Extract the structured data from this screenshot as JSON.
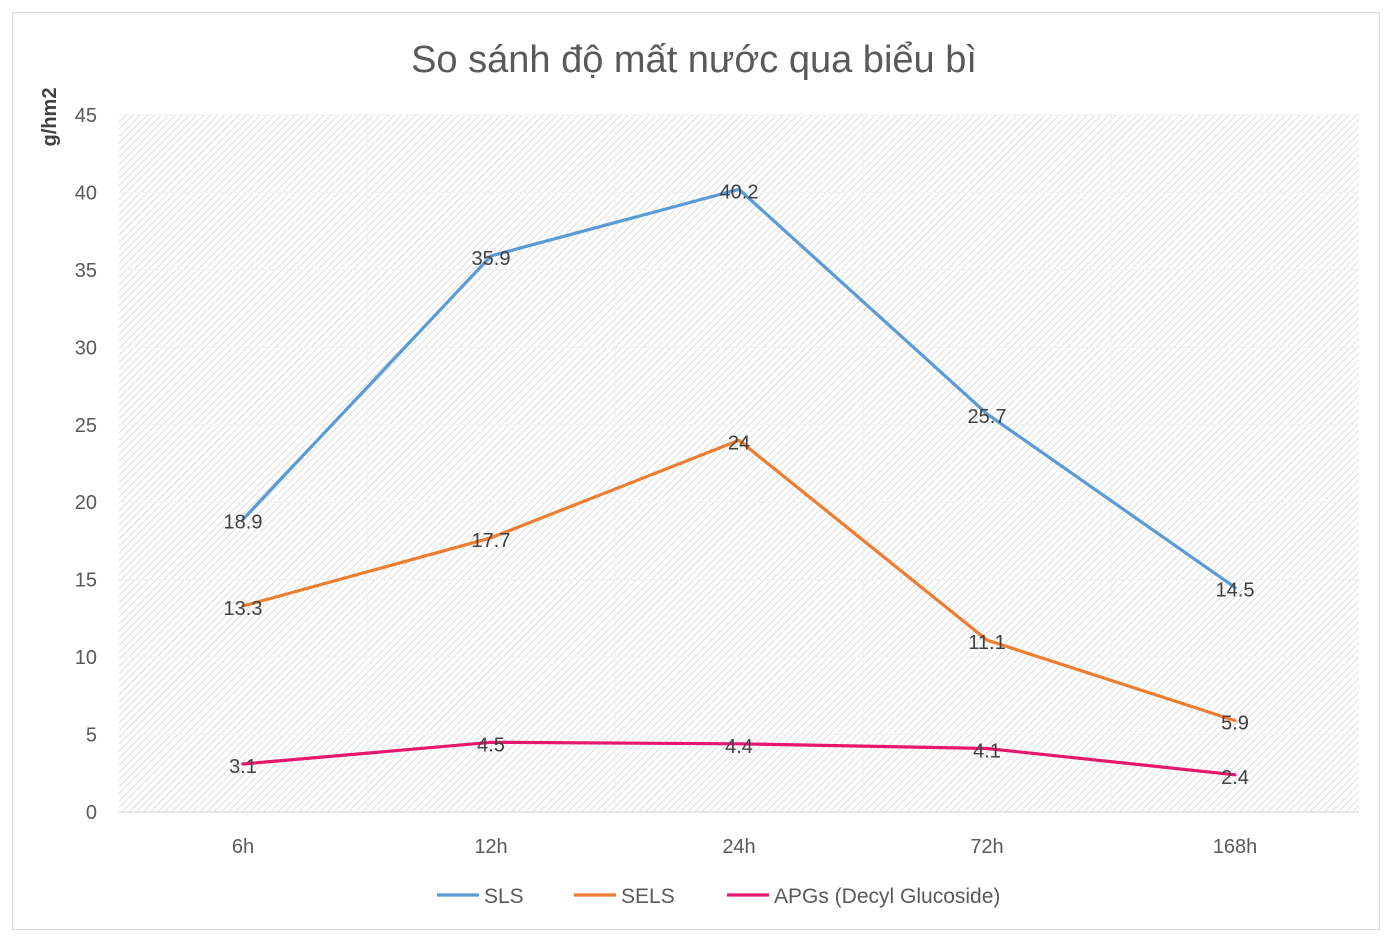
{
  "chart_data": {
    "type": "line",
    "title": "So sánh độ mất nước qua biểu bì",
    "xlabel": "",
    "ylabel": "g/hm2",
    "categories": [
      "6h",
      "12h",
      "24h",
      "72h",
      "168h"
    ],
    "ylim": [
      0,
      45
    ],
    "yticks": [
      0,
      5,
      10,
      15,
      20,
      25,
      30,
      35,
      40,
      45
    ],
    "grid": true,
    "legend_position": "bottom",
    "series": [
      {
        "name": "SLS",
        "color": "#5b9bd5",
        "values": [
          18.9,
          35.9,
          40.2,
          25.7,
          14.5
        ]
      },
      {
        "name": "SELS",
        "color": "#ed7d31",
        "values": [
          13.3,
          17.7,
          24,
          11.1,
          5.9
        ]
      },
      {
        "name": "APGs (Decyl Glucoside)",
        "color": "#e6176f",
        "values": [
          3.1,
          4.5,
          4.4,
          4.1,
          2.4
        ]
      }
    ]
  }
}
